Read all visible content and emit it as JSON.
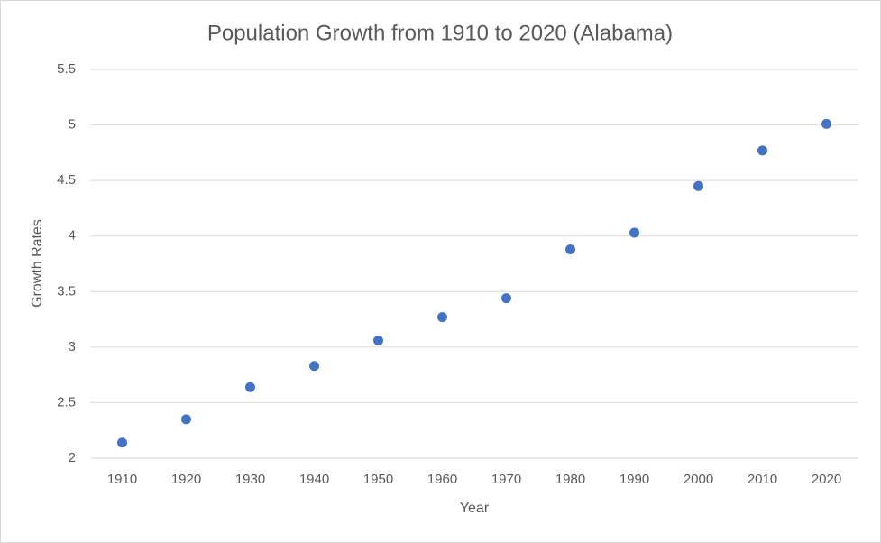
{
  "chart_data": {
    "type": "scatter",
    "title": "Population Growth from 1910 to 2020 (Alabama)",
    "x_label": "Year",
    "y_label": "Growth Rates",
    "categories": [
      "1910",
      "1920",
      "1930",
      "1940",
      "1950",
      "1960",
      "1970",
      "1980",
      "1990",
      "2000",
      "2010",
      "2020"
    ],
    "values": [
      2.14,
      2.35,
      2.64,
      2.83,
      3.06,
      3.27,
      3.44,
      3.88,
      4.03,
      4.45,
      4.77,
      5.01
    ],
    "color": "#4472c4",
    "ylim": [
      2,
      5.5
    ],
    "yticks": [
      2,
      2.5,
      3,
      3.5,
      4,
      4.5,
      5,
      5.5
    ],
    "grid": true
  }
}
